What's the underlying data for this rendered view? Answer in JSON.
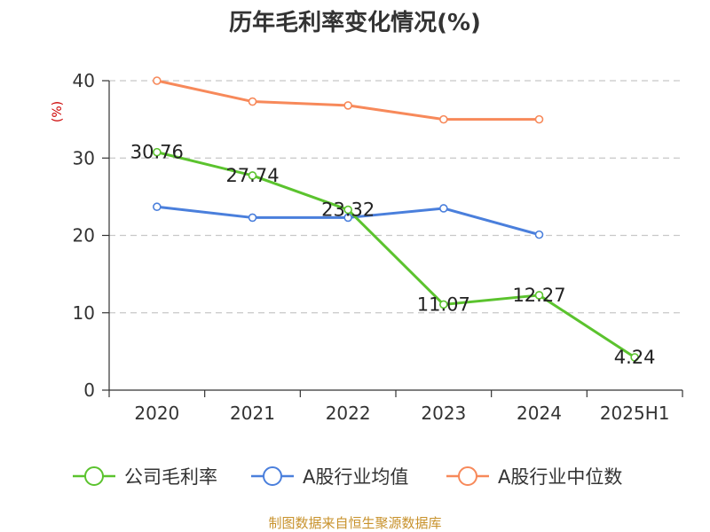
{
  "chart_data": {
    "type": "line",
    "title": "历年毛利率变化情况(%)",
    "ylabel": "(%)",
    "xlabel": "",
    "categories": [
      "2020",
      "2021",
      "2022",
      "2023",
      "2024",
      "2025H1"
    ],
    "ylim": [
      0,
      40
    ],
    "yticks": [
      0,
      10,
      20,
      30,
      40
    ],
    "grid": true,
    "legend_position": "bottom",
    "series": [
      {
        "name": "公司毛利率",
        "color": "#5bc32e",
        "values": [
          30.76,
          27.74,
          23.32,
          11.07,
          12.27,
          4.24
        ],
        "labels": [
          "30.76",
          "27.74",
          "23.32",
          "11.07",
          "12.27",
          "4.24"
        ]
      },
      {
        "name": "A股行业均值",
        "color": "#4a7fdc",
        "values": [
          23.7,
          22.3,
          22.3,
          23.5,
          20.1,
          null
        ]
      },
      {
        "name": "A股行业中位数",
        "color": "#f7895a",
        "values": [
          40.0,
          37.3,
          36.8,
          35.0,
          35.0,
          null
        ]
      }
    ],
    "source": "制图数据来自恒生聚源数据库"
  }
}
